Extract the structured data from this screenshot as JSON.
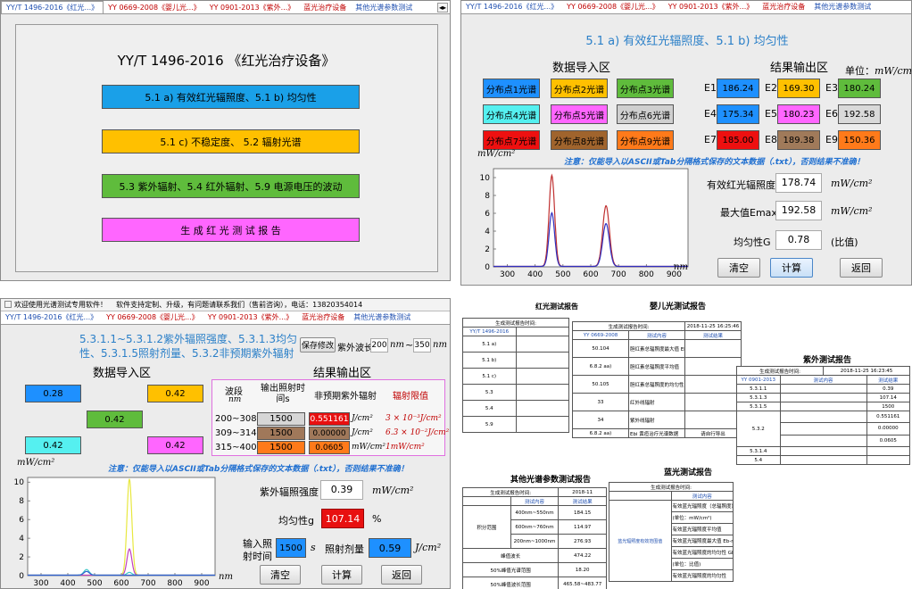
{
  "tabs": {
    "t1": "YY/T 1496-2016《红光...》",
    "t2": "YY 0669-2008《婴儿光...》",
    "t3": "YY 0901-2013《紫外...》",
    "t4": "蓝光治疗设备",
    "t5": "其他光谱参数测试"
  },
  "nav": "◂▸",
  "q1": {
    "title": "YY/T 1496-2016 《红光治疗设备》",
    "b1": "5.1 a) 有效红光辐照度、5.1 b) 均匀性",
    "b2": "5.1 c) 不稳定度、   5.2 辐射光谱",
    "b3": "5.3 紫外辐射、5.4 红外辐射、5.9 电源电压的波动",
    "b4": "生 成 红 光 测 试 报 告"
  },
  "q2": {
    "section": "5.1 a) 有效红光辐照度、5.1 b) 均匀性",
    "import_title": "数据导入区",
    "result_title": "结果输出区",
    "unit_label": "单位：",
    "unit": "mW/cm²",
    "dist": [
      "分布点1光谱",
      "分布点2光谱",
      "分布点3光谱",
      "分布点4光谱",
      "分布点5光谱",
      "分布点6光谱",
      "分布点7光谱",
      "分布点8光谱",
      "分布点9光谱"
    ],
    "e_labels": [
      "E1",
      "E2",
      "E3",
      "E4",
      "E5",
      "E6",
      "E7",
      "E8",
      "E9"
    ],
    "e_values": [
      "186.24",
      "169.30",
      "180.24",
      "175.34",
      "180.23",
      "192.58",
      "185.00",
      "189.38",
      "150.36"
    ],
    "note": "注意：仅能导入以ASCII或Tab分隔格式保存的文本数据（.txt），否则结果不准确！",
    "y_unit": "mW/cm²",
    "x_unit": "nm",
    "eff_label": "有效红光辐照度",
    "eff_value": "178.74",
    "eff_unit": "mW/cm²",
    "max_label": "最大值Emax",
    "max_value": "192.58",
    "max_unit": "mW/cm²",
    "uni_label": "均匀性G",
    "uni_value": "0.78",
    "uni_unit": "(比值)",
    "clear": "清空",
    "calc": "计算",
    "back": "返回"
  },
  "q3": {
    "window_title": "欢迎使用光谱测试专用软件！",
    "window_note": "软件支持定制、升级，有问题请联系我们（售前咨询），电话：13820354014",
    "title_l1": "5.3.1.1~5.3.1.2紫外辐照强度、5.3.1.3均匀",
    "title_l2": "性、5.3.1.5照射剂量、5.3.2非预期紫外辐射",
    "save_btn": "保存修改",
    "uv_label": "紫外波长",
    "uv_from": "200",
    "nm1": "nm",
    "tilde": "~",
    "uv_to": "350",
    "nm2": "nm",
    "import_title": "数据导入区",
    "result_title": "结果输出区",
    "inputs": [
      "0.28",
      "0.42",
      "0.42",
      "0.42",
      "0.42"
    ],
    "unit_left": "mW/cm²",
    "th_band": "波段",
    "th_band_unit": "nm",
    "th_time": "输出照射时间s",
    "th_uv": "非预期紫外辐射",
    "th_limit": "辐射限值",
    "rows": [
      {
        "band": "200~308",
        "time": "1500",
        "uv": "0.551161",
        "unit": "J/cm²",
        "limit": "3 × 10⁻³J/cm²"
      },
      {
        "band": "309~314",
        "time": "1500",
        "uv": "0.00000",
        "unit": "J/cm²",
        "limit": "6.3 × 10⁻²J/cm²"
      },
      {
        "band": "315~400",
        "time": "1500",
        "uv": "0.0605",
        "unit": "mW/cm²",
        "limit": "1mW/cm²"
      }
    ],
    "note": "注意：仅能导入以ASCII或Tab分隔格式保存的文本数据（.txt），否则结果不准确！",
    "uvi_label": "紫外辐照强度",
    "uvi_value": "0.39",
    "uvi_unit": "mW/cm²",
    "g_label": "均匀性g",
    "g_value": "107.14",
    "g_unit": "%",
    "t_label_1": "输入照",
    "t_label_2": "射时间",
    "t_value": "1500",
    "t_unit": "s",
    "dose_label": "照射剂量",
    "dose_value": "0.59",
    "dose_unit": "J/cm²",
    "x_unit": "nm",
    "clear": "清空",
    "calc": "计算",
    "back": "返回"
  },
  "q4": {
    "r_title": "红光测试报告",
    "r_t1": "生成测试报告时间:",
    "r_std": "YY/T 1496-2016",
    "r_items": [
      "5.1 a)",
      "5.1 b)",
      "5.1 c)",
      "5.3",
      "5.4",
      "5.9"
    ],
    "i_title": "婴儿光测试报告",
    "i_time_label": "生成测试报告时间:",
    "i_time": "2018-11-25 16:25:46",
    "i_std": "YY 0669-2008",
    "i_col": "测试内容",
    "i_res": "测试结果",
    "i_items": [
      "50.104",
      "6.8.2 aa)",
      "50.105",
      "33",
      "34",
      "6.8.2 aa)"
    ],
    "i_texts": [
      "胆红素总辐照度最大值 Eb-max",
      "(单位：mW/cm²)",
      "胆红素总辐照度平均值",
      "胆红素总辐照度的均匀性 Gb",
      "红外线辐射",
      "紫外线辐射",
      "Ebi 黄疸治疗光谱数据"
    ],
    "i_last": "请自行导出",
    "u_title": "紫外测试报告",
    "u_time_label": "生成测试报告时间:",
    "u_time": "2018-11-25 16:23:45",
    "u_std": "YY 0901-2013",
    "u_items": [
      "5.3.1.1",
      "5.3.1.3",
      "5.3.1.5",
      "5.3.2",
      "5.3.1.4",
      "5.4"
    ],
    "u_vals": [
      "0.39",
      "107.14",
      "1500",
      "0.551161",
      "0.00000",
      "0.0605"
    ],
    "o_title": "其他光谱参数测试报告",
    "o_time_label": "生成测试报告时间:",
    "o_time": "2018-11",
    "o_col": "测试内容",
    "o_res": "测试结果",
    "o_rows": [
      {
        "a": "400nm~550nm",
        "b": "184.15"
      },
      {
        "a": "600nm~760nm",
        "b": "114.97"
      },
      {
        "a": "200nm~1000nm",
        "b": "276.93"
      },
      {
        "a": "峰值波长",
        "b": "474.22"
      },
      {
        "a": "50%峰值光谱范围",
        "b": "18.20"
      },
      {
        "a": "50%峰值波长范围",
        "b": "465.58~483.77"
      }
    ],
    "o_group": "积分范围",
    "b_title": "蓝光测试报告",
    "b_time_label": "生成测试报告时间:",
    "b_col": "测试内容",
    "b_rows": [
      "有效蓝光辐照度（总辐照度）",
      "(单位：mW/cm²)",
      "有效蓝光辐照度平均值",
      "有效蓝光辐照度最大值 Eb-max",
      "有效蓝光辐照度的均匀性 Gb",
      "(单位：比值)",
      "有效蓝光辐照度的均匀性"
    ],
    "b_group": "蓝光辐照度有效范围值"
  }
}
